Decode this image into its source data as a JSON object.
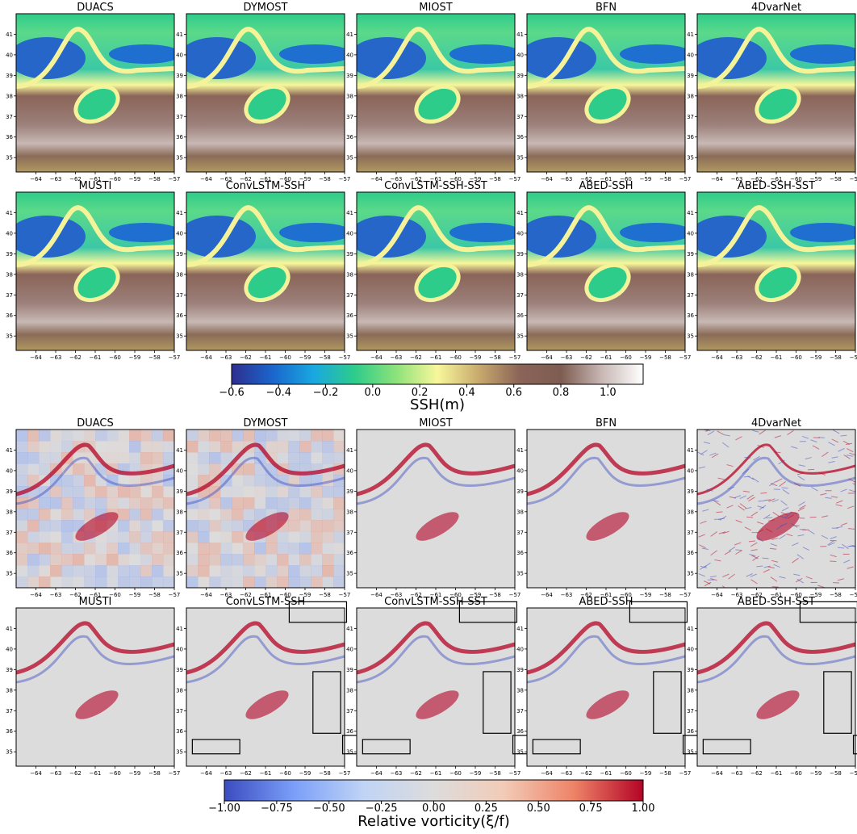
{
  "chart_data": [
    {
      "type": "heatmap",
      "panels": [
        "DUACS",
        "DYMOST",
        "MIOST",
        "BFN",
        "4DvarNet",
        "MUSTI",
        "ConvLSTM-SSH",
        "ConvLSTM-SSH-SST",
        "ABED-SSH",
        "ABED-SSH-SST"
      ],
      "x_ticks": [
        -64,
        -63,
        -62,
        -61,
        -60,
        -59,
        -58,
        -57
      ],
      "y_ticks": [
        35,
        36,
        37,
        38,
        39,
        40,
        41
      ],
      "xlim": [
        -65,
        -57
      ],
      "ylim": [
        34.3,
        42
      ],
      "colorbar": {
        "label": "SSH(m)",
        "range": [
          -0.6,
          1.15
        ],
        "ticks": [
          -0.6,
          -0.4,
          -0.2,
          0.0,
          0.2,
          0.4,
          0.6,
          0.8,
          1.0
        ],
        "tick_labels": [
          "−0.6",
          "−0.4",
          "−0.2",
          "0.0",
          "0.2",
          "0.4",
          "0.6",
          "0.8",
          "1.0"
        ],
        "colors": [
          "#2e2e8f",
          "#1a66cc",
          "#19a8e0",
          "#2ecc8a",
          "#8ee27a",
          "#f8f79a",
          "#c8aa6e",
          "#8a6458",
          "#7e5c52",
          "#c8b8b4",
          "#ffffff"
        ]
      }
    },
    {
      "type": "heatmap",
      "panels": [
        "DUACS",
        "DYMOST",
        "MIOST",
        "BFN",
        "4DvarNet",
        "MUSTI",
        "ConvLSTM-SSH",
        "ConvLSTM-SSH-SST",
        "ABED-SSH",
        "ABED-SSH-SST"
      ],
      "x_ticks": [
        -64,
        -63,
        -62,
        -61,
        -60,
        -59,
        -58,
        -57
      ],
      "y_ticks": [
        35,
        36,
        37,
        38,
        39,
        40,
        41
      ],
      "xlim": [
        -65,
        -57
      ],
      "ylim": [
        34.3,
        42
      ],
      "colorbar": {
        "label": "Relative vorticity(ξ/f)",
        "range": [
          -1.0,
          1.0
        ],
        "ticks": [
          -1.0,
          -0.75,
          -0.5,
          -0.25,
          0.0,
          0.25,
          0.5,
          0.75,
          1.0
        ],
        "tick_labels": [
          "−1.00",
          "−0.75",
          "−0.50",
          "−0.25",
          "0.00",
          "0.25",
          "0.50",
          "0.75",
          "1.00"
        ],
        "colors": [
          "#3b4cc0",
          "#7b9ff9",
          "#c0d4f5",
          "#dddcdc",
          "#f2cbb7",
          "#ee8468",
          "#b40426"
        ]
      },
      "highlight_boxes": {
        "panels": [
          "ConvLSTM-SSH",
          "ConvLSTM-SSH-SST",
          "ABED-SSH",
          "ABED-SSH-SST"
        ],
        "boxes": [
          {
            "lon": [
              -59.8,
              -56.9
            ],
            "lat": [
              41.3,
              42.3
            ]
          },
          {
            "lon": [
              -58.6,
              -57.2
            ],
            "lat": [
              35.9,
              38.9
            ]
          },
          {
            "lon": [
              -64.7,
              -62.3
            ],
            "lat": [
              34.9,
              35.6
            ]
          },
          {
            "lon": [
              -57.1,
              -56.0
            ],
            "lat": [
              34.9,
              35.8
            ]
          }
        ]
      }
    }
  ]
}
